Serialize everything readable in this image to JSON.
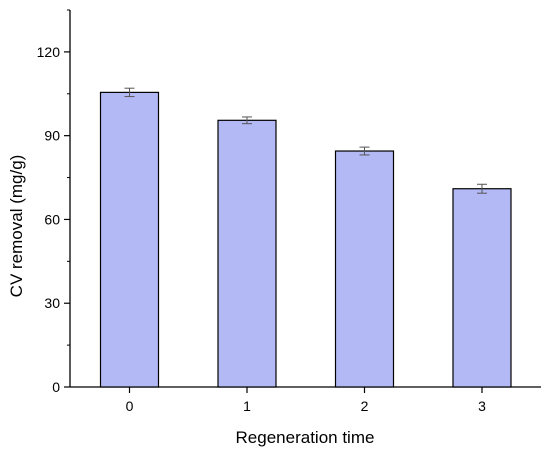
{
  "chart_data": {
    "type": "bar",
    "title": "",
    "xlabel": "Regeneration time",
    "ylabel": "CV removal (mg/g)",
    "categories": [
      "0",
      "1",
      "2",
      "3"
    ],
    "values": [
      105.5,
      95.5,
      84.5,
      71.0
    ],
    "errors": [
      1.5,
      1.2,
      1.4,
      1.6
    ],
    "ylim": [
      0,
      135
    ],
    "yticks": [
      0,
      30,
      60,
      90,
      120
    ],
    "ytick_labels": [
      "0",
      "30",
      "60",
      "90",
      "120"
    ],
    "grid": false,
    "bar_fill": "#b3b9f5",
    "bar_stroke": "#000000",
    "error_bar_color": "#555555"
  }
}
